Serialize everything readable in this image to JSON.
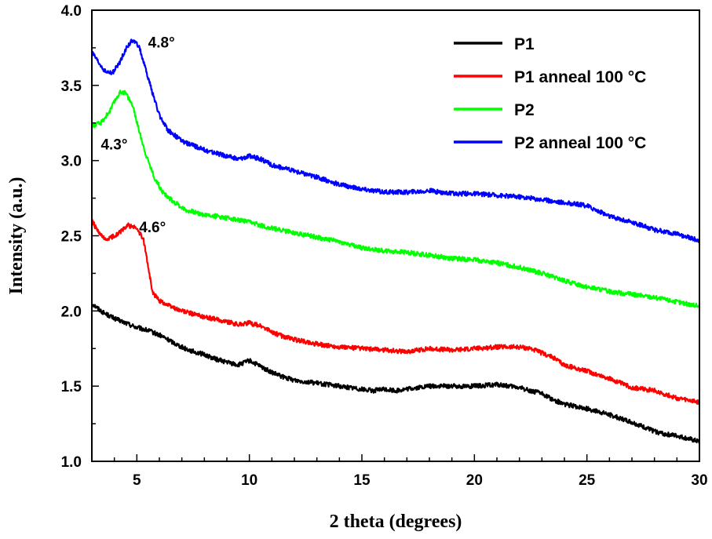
{
  "chart_data": {
    "type": "line",
    "title": "",
    "xlabel": "2 theta (degrees)",
    "ylabel": "Intensity (a.u.)",
    "xlim": [
      3,
      30
    ],
    "ylim": [
      1.0,
      4.0
    ],
    "xticks": [
      5,
      10,
      15,
      20,
      25,
      30
    ],
    "xtick_labels": [
      "5",
      "10",
      "15",
      "20",
      "25",
      "30"
    ],
    "yticks": [
      1.0,
      1.5,
      2.0,
      2.5,
      3.0,
      3.5,
      4.0
    ],
    "ytick_labels": [
      "1.0",
      "1.5",
      "2.0",
      "2.5",
      "3.0",
      "3.5",
      "4.0"
    ],
    "grid": false,
    "legend": "top-right",
    "series": [
      {
        "name": "P1",
        "color": "#000000",
        "points": [
          [
            3,
            2.05
          ],
          [
            3.5,
            1.99
          ],
          [
            4,
            1.95
          ],
          [
            4.5,
            1.92
          ],
          [
            5,
            1.89
          ],
          [
            5.5,
            1.87
          ],
          [
            6,
            1.84
          ],
          [
            6.5,
            1.8
          ],
          [
            7,
            1.76
          ],
          [
            7.5,
            1.73
          ],
          [
            8,
            1.71
          ],
          [
            8.5,
            1.68
          ],
          [
            9,
            1.66
          ],
          [
            9.5,
            1.64
          ],
          [
            10,
            1.67
          ],
          [
            10.5,
            1.63
          ],
          [
            11,
            1.59
          ],
          [
            11.5,
            1.56
          ],
          [
            12,
            1.54
          ],
          [
            13,
            1.52
          ],
          [
            14,
            1.5
          ],
          [
            15,
            1.48
          ],
          [
            15.5,
            1.47
          ],
          [
            16,
            1.48
          ],
          [
            16.5,
            1.47
          ],
          [
            17,
            1.48
          ],
          [
            17.5,
            1.49
          ],
          [
            18,
            1.5
          ],
          [
            19,
            1.5
          ],
          [
            20,
            1.5
          ],
          [
            21,
            1.51
          ],
          [
            22,
            1.49
          ],
          [
            22.5,
            1.47
          ],
          [
            23,
            1.45
          ],
          [
            23.5,
            1.41
          ],
          [
            24,
            1.38
          ],
          [
            25,
            1.35
          ],
          [
            26,
            1.31
          ],
          [
            27,
            1.26
          ],
          [
            27.5,
            1.23
          ],
          [
            28,
            1.2
          ],
          [
            28.5,
            1.18
          ],
          [
            29,
            1.17
          ],
          [
            29.5,
            1.15
          ],
          [
            30,
            1.13
          ]
        ]
      },
      {
        "name": "P1 anneal 100 °C",
        "color": "#ff0000",
        "points": [
          [
            3,
            2.6
          ],
          [
            3.3,
            2.52
          ],
          [
            3.6,
            2.47
          ],
          [
            4,
            2.5
          ],
          [
            4.3,
            2.53
          ],
          [
            4.6,
            2.57
          ],
          [
            5,
            2.55
          ],
          [
            5.3,
            2.47
          ],
          [
            5.5,
            2.3
          ],
          [
            5.7,
            2.12
          ],
          [
            6,
            2.07
          ],
          [
            6.5,
            2.03
          ],
          [
            7,
            2.0
          ],
          [
            7.5,
            1.98
          ],
          [
            8,
            1.96
          ],
          [
            9,
            1.93
          ],
          [
            9.5,
            1.91
          ],
          [
            10,
            1.92
          ],
          [
            10.5,
            1.9
          ],
          [
            11,
            1.86
          ],
          [
            11.5,
            1.83
          ],
          [
            12,
            1.81
          ],
          [
            13,
            1.78
          ],
          [
            14,
            1.76
          ],
          [
            15,
            1.75
          ],
          [
            16,
            1.74
          ],
          [
            17,
            1.73
          ],
          [
            18,
            1.75
          ],
          [
            19,
            1.74
          ],
          [
            20,
            1.75
          ],
          [
            21,
            1.76
          ],
          [
            22,
            1.76
          ],
          [
            22.5,
            1.75
          ],
          [
            23,
            1.72
          ],
          [
            23.5,
            1.69
          ],
          [
            24,
            1.64
          ],
          [
            25,
            1.6
          ],
          [
            26,
            1.55
          ],
          [
            26.5,
            1.52
          ],
          [
            27,
            1.49
          ],
          [
            28,
            1.47
          ],
          [
            29,
            1.42
          ],
          [
            30,
            1.39
          ]
        ]
      },
      {
        "name": "P2",
        "color": "#00ff00",
        "points": [
          [
            3,
            3.23
          ],
          [
            3.4,
            3.25
          ],
          [
            3.8,
            3.33
          ],
          [
            4.1,
            3.42
          ],
          [
            4.3,
            3.46
          ],
          [
            4.5,
            3.45
          ],
          [
            4.8,
            3.37
          ],
          [
            5.1,
            3.2
          ],
          [
            5.4,
            3.04
          ],
          [
            5.8,
            2.88
          ],
          [
            6.2,
            2.78
          ],
          [
            6.7,
            2.72
          ],
          [
            7.2,
            2.67
          ],
          [
            8,
            2.64
          ],
          [
            9,
            2.62
          ],
          [
            10,
            2.59
          ],
          [
            11,
            2.55
          ],
          [
            12,
            2.52
          ],
          [
            13,
            2.49
          ],
          [
            14,
            2.46
          ],
          [
            15,
            2.42
          ],
          [
            16,
            2.4
          ],
          [
            17,
            2.39
          ],
          [
            18,
            2.37
          ],
          [
            19,
            2.35
          ],
          [
            20,
            2.34
          ],
          [
            21,
            2.32
          ],
          [
            22,
            2.29
          ],
          [
            23,
            2.25
          ],
          [
            24,
            2.2
          ],
          [
            25,
            2.16
          ],
          [
            26,
            2.13
          ],
          [
            27,
            2.11
          ],
          [
            28,
            2.09
          ],
          [
            29,
            2.06
          ],
          [
            30,
            2.03
          ]
        ]
      },
      {
        "name": "P2 anneal 100 °C",
        "color": "#0000ff",
        "points": [
          [
            3,
            3.72
          ],
          [
            3.3,
            3.65
          ],
          [
            3.6,
            3.59
          ],
          [
            3.9,
            3.58
          ],
          [
            4.2,
            3.64
          ],
          [
            4.5,
            3.74
          ],
          [
            4.8,
            3.8
          ],
          [
            5.1,
            3.76
          ],
          [
            5.4,
            3.6
          ],
          [
            5.7,
            3.45
          ],
          [
            6,
            3.3
          ],
          [
            6.4,
            3.2
          ],
          [
            7,
            3.13
          ],
          [
            7.5,
            3.1
          ],
          [
            8,
            3.07
          ],
          [
            8.5,
            3.05
          ],
          [
            9,
            3.03
          ],
          [
            9.5,
            3.01
          ],
          [
            10,
            3.03
          ],
          [
            10.5,
            3.01
          ],
          [
            11,
            2.97
          ],
          [
            12,
            2.93
          ],
          [
            13,
            2.89
          ],
          [
            14,
            2.84
          ],
          [
            15,
            2.81
          ],
          [
            16,
            2.79
          ],
          [
            17,
            2.79
          ],
          [
            18,
            2.8
          ],
          [
            19,
            2.78
          ],
          [
            20,
            2.78
          ],
          [
            21,
            2.77
          ],
          [
            22,
            2.76
          ],
          [
            23,
            2.74
          ],
          [
            24,
            2.72
          ],
          [
            25,
            2.7
          ],
          [
            26,
            2.63
          ],
          [
            27,
            2.59
          ],
          [
            28,
            2.54
          ],
          [
            29,
            2.51
          ],
          [
            30,
            2.47
          ]
        ]
      }
    ],
    "annotations": [
      {
        "text": "4.8°",
        "x": 5.5,
        "y": 3.79
      },
      {
        "text": "4.3°",
        "x": 3.4,
        "y": 3.11
      },
      {
        "text": "4.6°",
        "x": 5.1,
        "y": 2.56
      }
    ]
  }
}
